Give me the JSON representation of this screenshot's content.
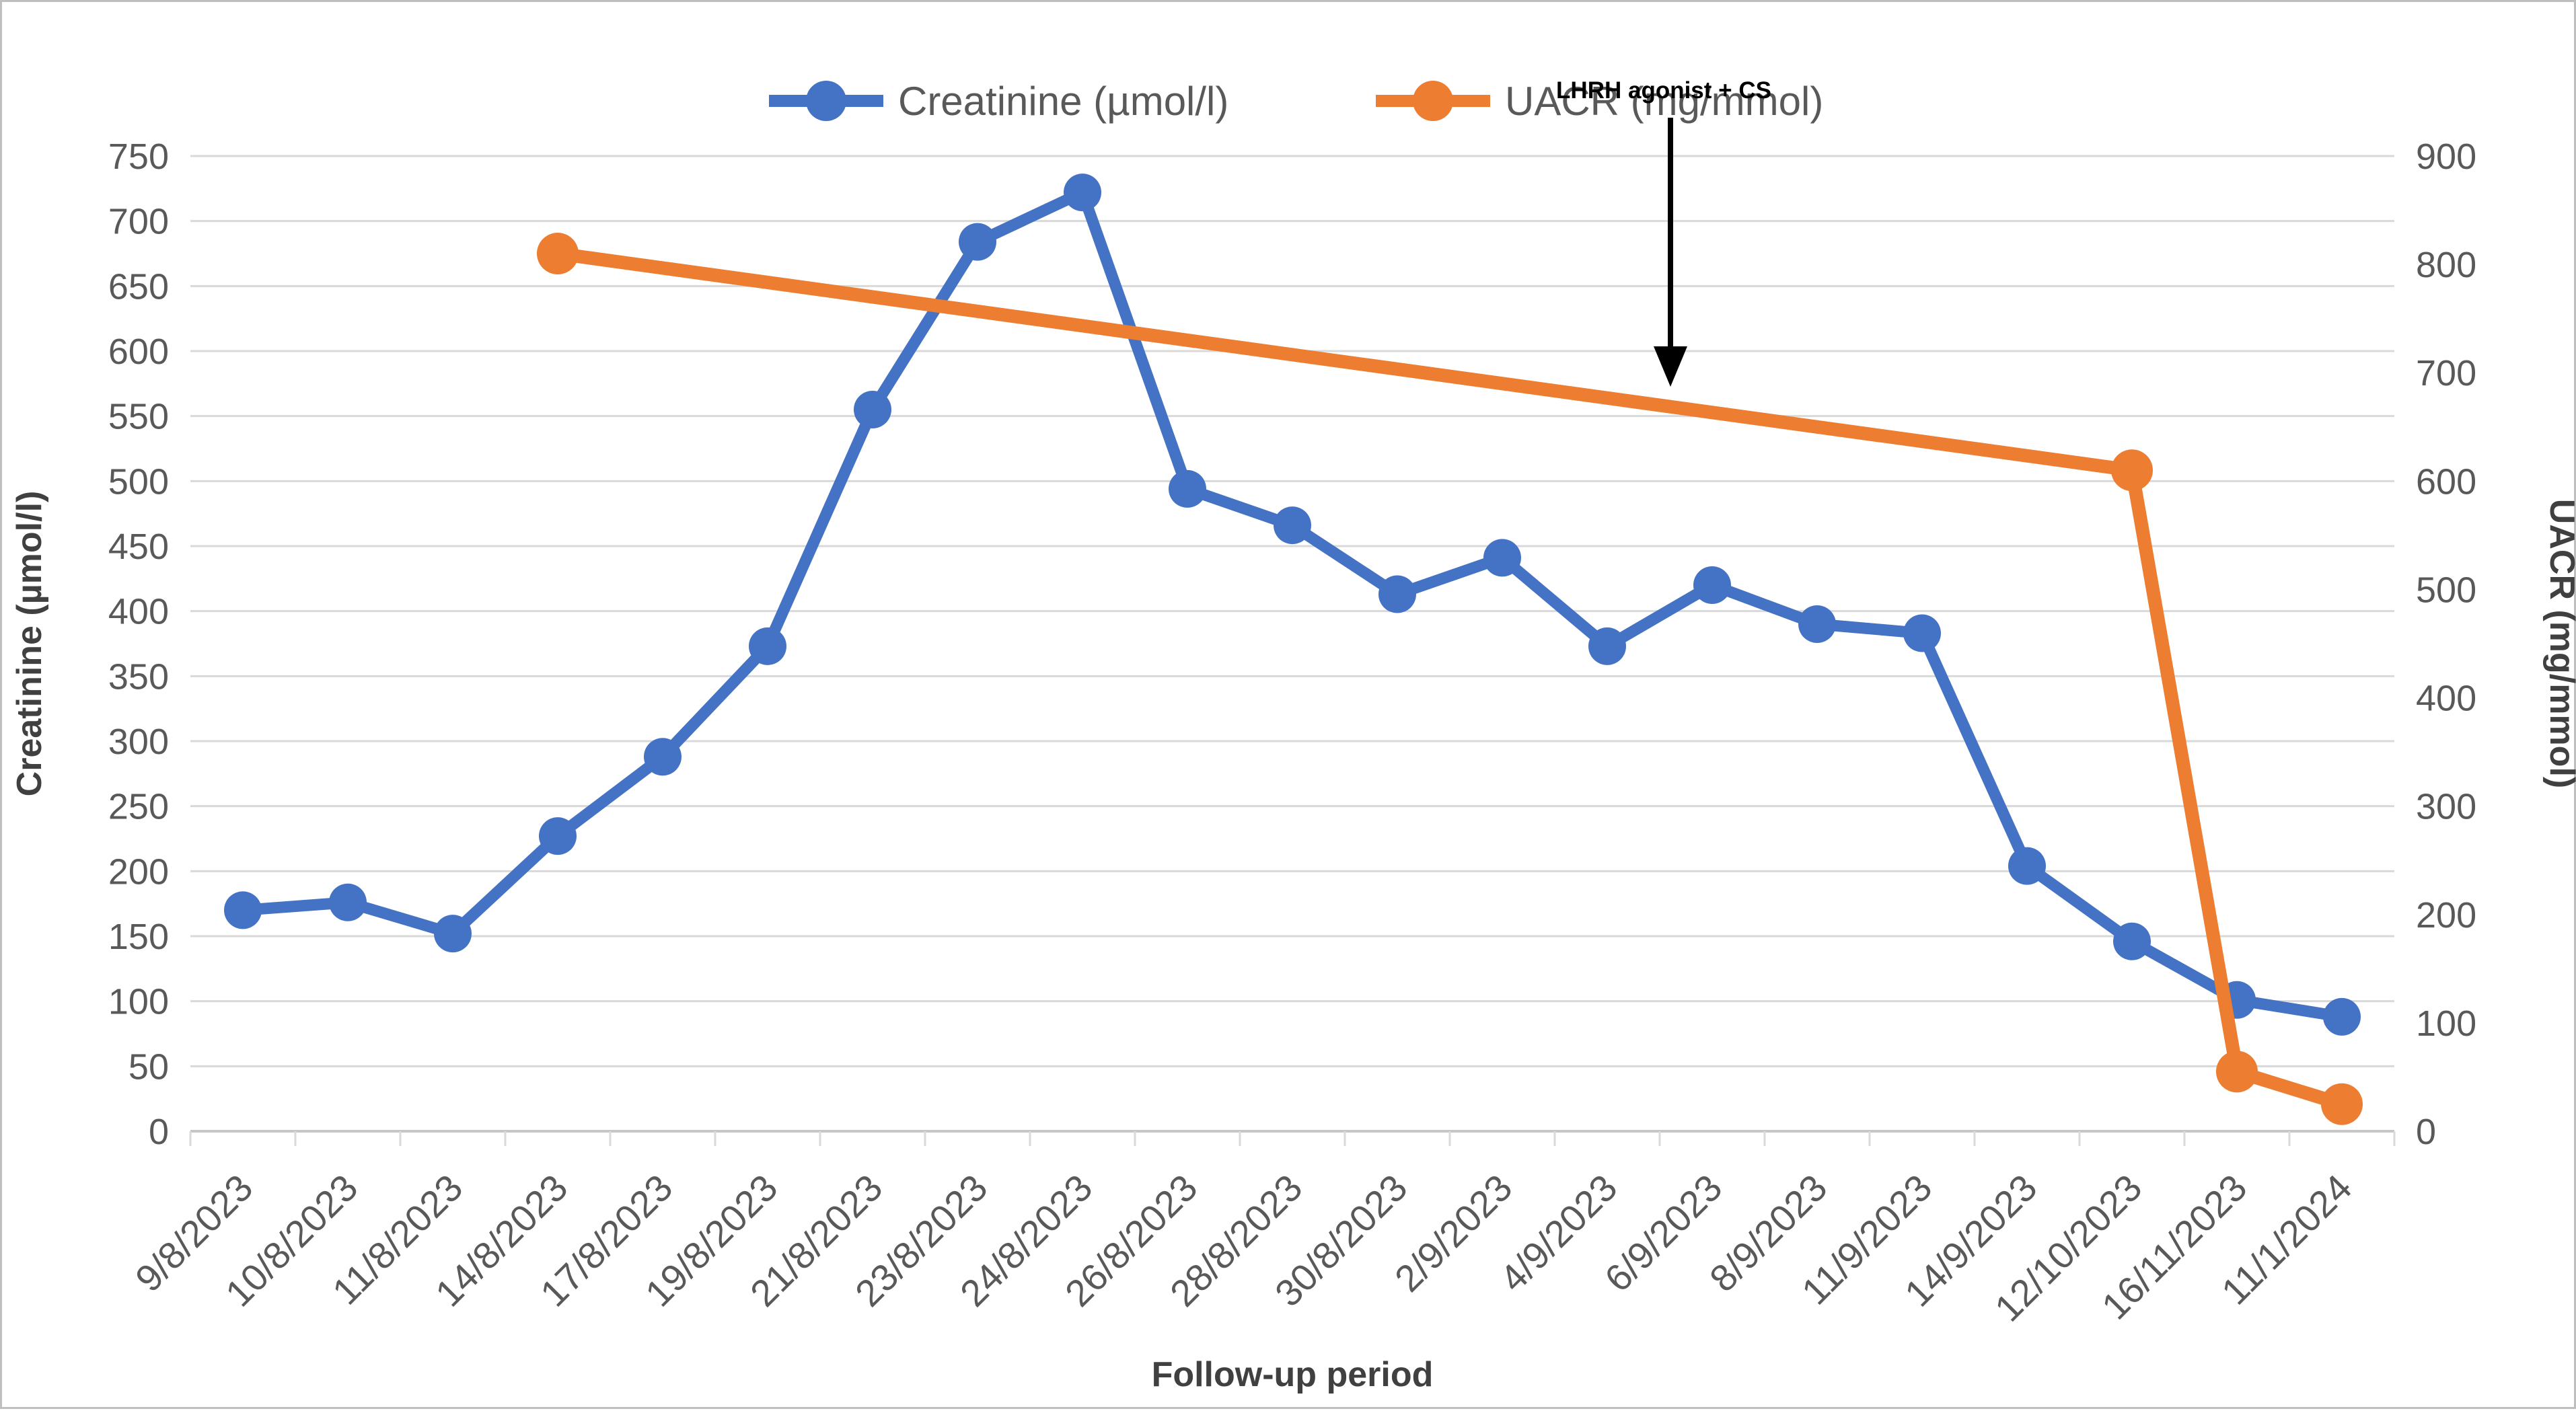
{
  "chart_data": {
    "type": "line",
    "title": "",
    "xlabel": "Follow-up period",
    "ylabel_left": "Creatinine (µmol/l)",
    "ylabel_right": "UACR (mg/mmol)",
    "legend_position": "top-center",
    "grid": "horizontal",
    "background_color": "#ffffff",
    "gridline_color": "#d9d9d9",
    "text_color": "#595959",
    "categories": [
      "9/8/2023",
      "10/8/2023",
      "11/8/2023",
      "14/8/2023",
      "17/8/2023",
      "19/8/2023",
      "21/8/2023",
      "23/8/2023",
      "24/8/2023",
      "26/8/2023",
      "28/8/2023",
      "30/8/2023",
      "2/9/2023",
      "4/9/2023",
      "6/9/2023",
      "8/9/2023",
      "11/9/2023",
      "14/9/2023",
      "12/10/2023",
      "16/11/2023",
      "11/1/2024"
    ],
    "series": [
      {
        "name": "Creatinine (µmol/l)",
        "axis": "left",
        "color": "#4472C4",
        "values": [
          170,
          176,
          152,
          227,
          288,
          373,
          555,
          684,
          722,
          494,
          466,
          413,
          441,
          373,
          420,
          390,
          383,
          204,
          146,
          101,
          88
        ]
      },
      {
        "name": "UACR (mg/mmol)",
        "axis": "right",
        "color": "#ED7D31",
        "values": [
          null,
          null,
          null,
          810,
          null,
          null,
          null,
          null,
          null,
          null,
          null,
          null,
          null,
          null,
          null,
          null,
          null,
          null,
          610,
          55,
          25
        ]
      }
    ],
    "y_left": {
      "min": 0,
      "max": 750,
      "step": 50,
      "ticks": [
        0,
        50,
        100,
        150,
        200,
        250,
        300,
        350,
        400,
        450,
        500,
        550,
        600,
        650,
        700,
        750
      ]
    },
    "y_right": {
      "min": 0,
      "max": 900,
      "step": 100,
      "ticks": [
        0,
        100,
        200,
        300,
        400,
        500,
        600,
        700,
        800,
        900
      ]
    },
    "annotation": {
      "text": "LHRH agonist + CS"
    }
  }
}
